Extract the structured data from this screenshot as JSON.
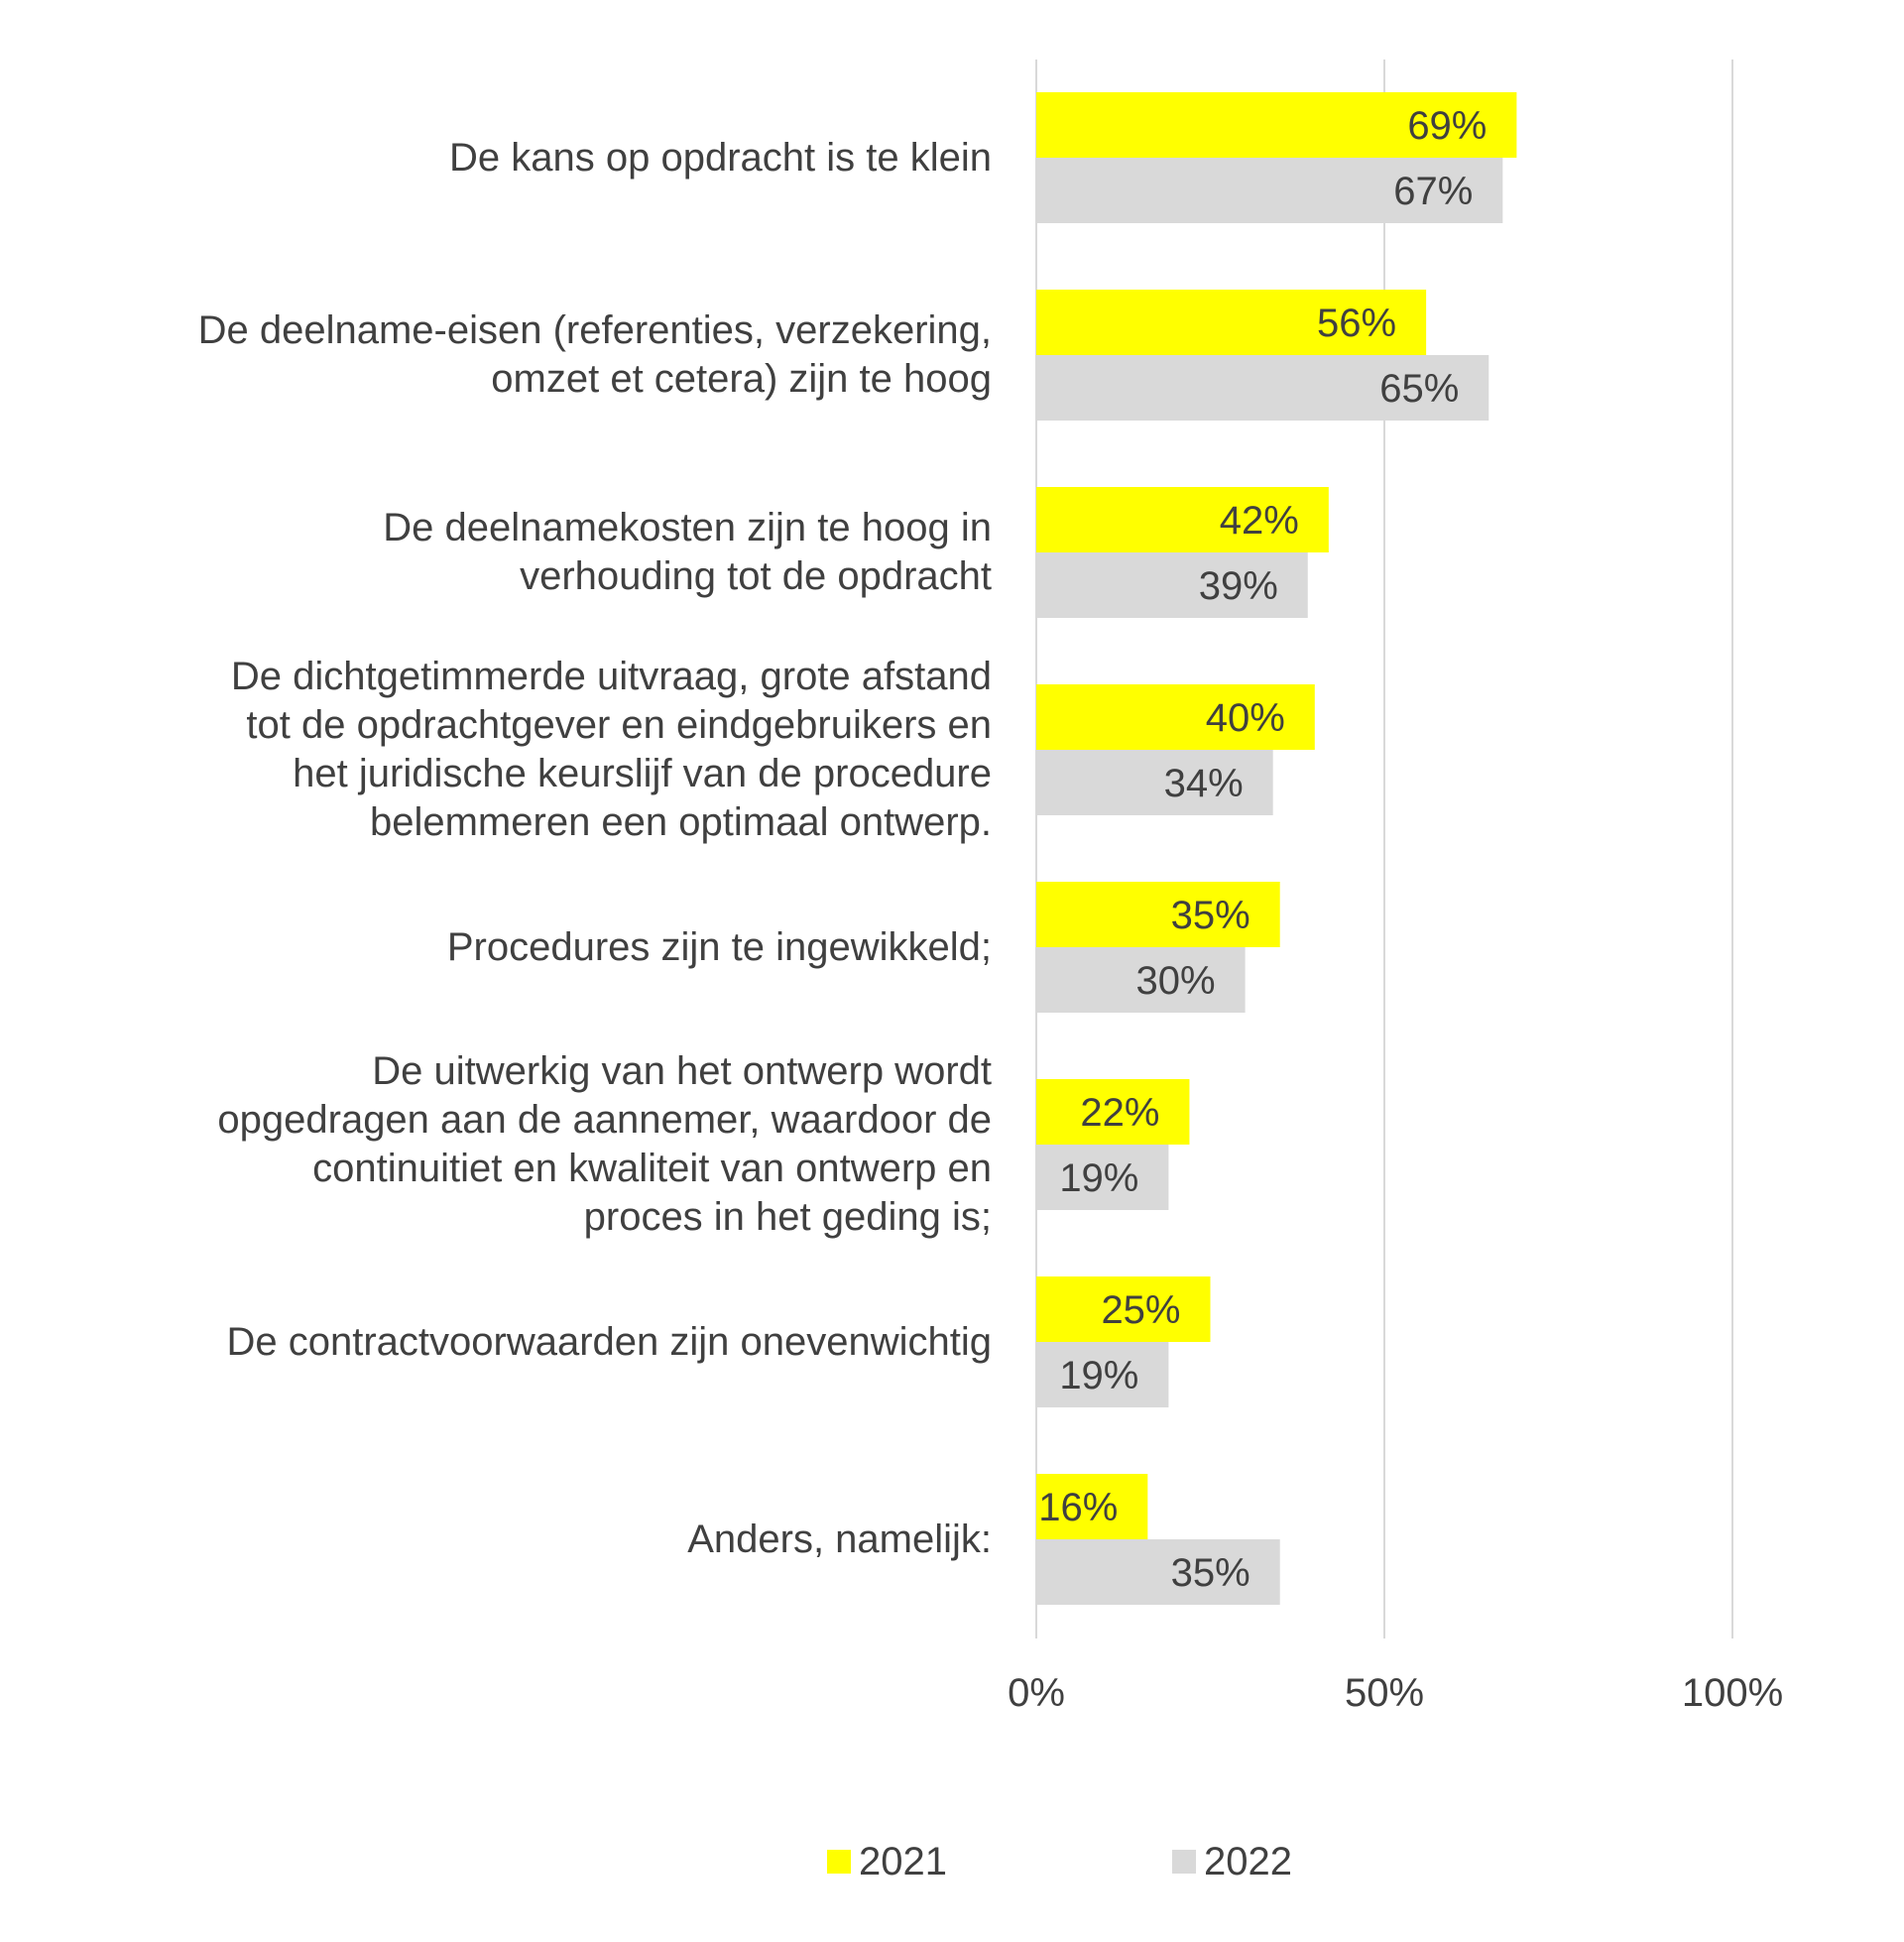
{
  "chart_data": {
    "type": "bar",
    "orientation": "horizontal",
    "categories": [
      [
        "De kans op opdracht is te klein"
      ],
      [
        "De deelname-eisen (referenties, verzekering,",
        "omzet et cetera) zijn te hoog"
      ],
      [
        "De deelnamekosten zijn te hoog in",
        "verhouding tot de opdracht"
      ],
      [
        "De dichtgetimmerde uitvraag, grote afstand",
        "tot de opdrachtgever en eindgebruikers en",
        "het juridische keurslijf van de procedure",
        "belemmeren een optimaal ontwerp."
      ],
      [
        "Procedures zijn te ingewikkeld;"
      ],
      [
        "De uitwerkig van het ontwerp wordt",
        "opgedragen aan de aannemer, waardoor de",
        "continuitiet en kwaliteit van ontwerp en",
        "proces in het geding is;"
      ],
      [
        "De contractvoorwaarden zijn onevenwichtig"
      ],
      [
        "Anders, namelijk:"
      ]
    ],
    "series": [
      {
        "name": "2021",
        "color": "#ffff00",
        "values": [
          69,
          56,
          42,
          40,
          35,
          22,
          25,
          16
        ],
        "labels": [
          "69%",
          "56%",
          "42%",
          "40%",
          "35%",
          "22%",
          "25%",
          "16%"
        ]
      },
      {
        "name": "2022",
        "color": "#d9d9d9",
        "values": [
          67,
          65,
          39,
          34,
          30,
          19,
          19,
          35
        ],
        "labels": [
          "67%",
          "65%",
          "39%",
          "34%",
          "30%",
          "19%",
          "19%",
          "35%"
        ]
      }
    ],
    "xlim": [
      0,
      100
    ],
    "xticks": [
      0,
      50,
      100
    ],
    "xtick_labels": [
      "0%",
      "50%",
      "100%"
    ],
    "grid": true,
    "legend_position": "bottom"
  }
}
